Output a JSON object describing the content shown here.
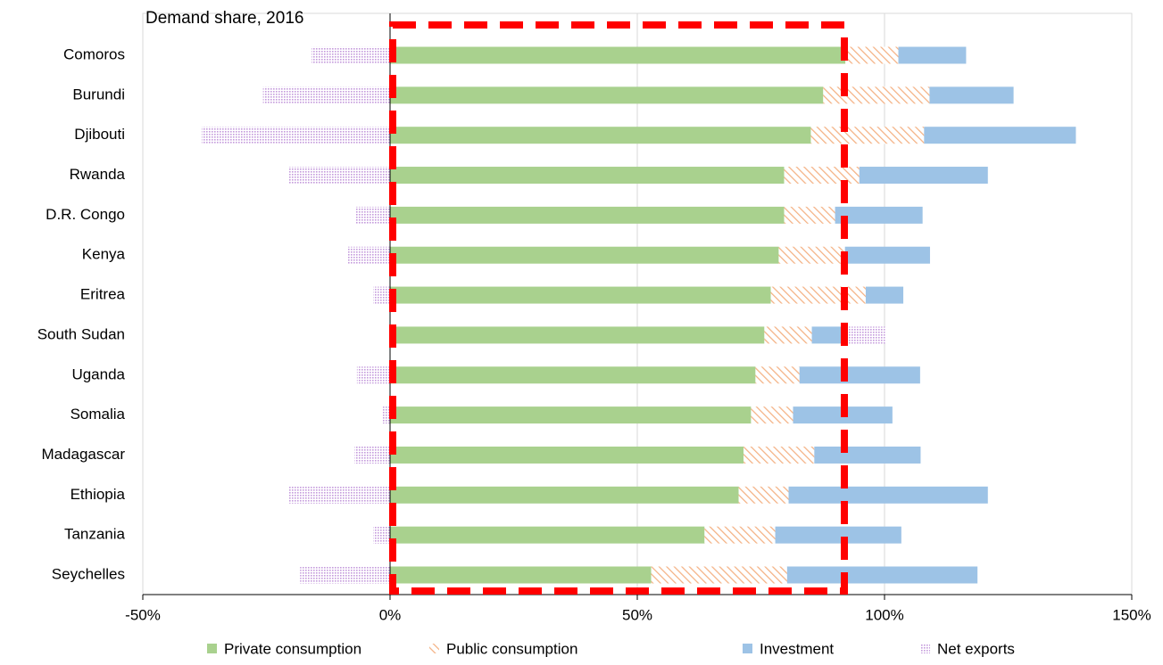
{
  "chart_data": {
    "type": "stacked_barh",
    "title": "Demand share, 2016",
    "categories": [
      "Comoros",
      "Burundi",
      "Djibouti",
      "Rwanda",
      "D.R. Congo",
      "Kenya",
      "Eritrea",
      "South Sudan",
      "Uganda",
      "Somalia",
      "Madagascar",
      "Ethiopia",
      "Tanzania",
      "Seychelles"
    ],
    "series": [
      {
        "name": "Private consumption",
        "color": "#a9d18e",
        "pattern": "solid",
        "values": [
          92.1,
          87.6,
          85.1,
          79.7,
          79.7,
          78.6,
          77.0,
          75.7,
          73.9,
          73.0,
          71.5,
          70.5,
          63.6,
          52.8
        ]
      },
      {
        "name": "Public consumption",
        "color": "#f4b183",
        "pattern": "hatch",
        "values": [
          10.7,
          21.5,
          22.9,
          15.2,
          10.3,
          13.4,
          19.2,
          9.6,
          8.9,
          8.5,
          14.3,
          10.1,
          14.3,
          27.5
        ]
      },
      {
        "name": "Investment",
        "color": "#9dc3e6",
        "pattern": "solid",
        "values": [
          13.7,
          17.0,
          30.7,
          26.0,
          17.7,
          17.2,
          7.6,
          6.1,
          24.4,
          20.1,
          21.5,
          40.3,
          25.5,
          38.5
        ]
      },
      {
        "name": "Net exports",
        "color": "#c49bdc",
        "pattern": "dots",
        "values": [
          -15.9,
          -25.7,
          -38.1,
          -20.4,
          -7.0,
          -8.5,
          -3.4,
          8.7,
          -6.7,
          -1.6,
          -7.2,
          -20.4,
          -3.4,
          -18.2
        ]
      }
    ],
    "xlim": [
      -50,
      150
    ],
    "xticks": [
      {
        "value": -50,
        "label": "-50%"
      },
      {
        "value": 0,
        "label": "0%"
      },
      {
        "value": 50,
        "label": "50%"
      },
      {
        "value": 100,
        "label": "100%"
      },
      {
        "value": 150,
        "label": "150%"
      }
    ],
    "grid": true,
    "legend": "bottom"
  }
}
